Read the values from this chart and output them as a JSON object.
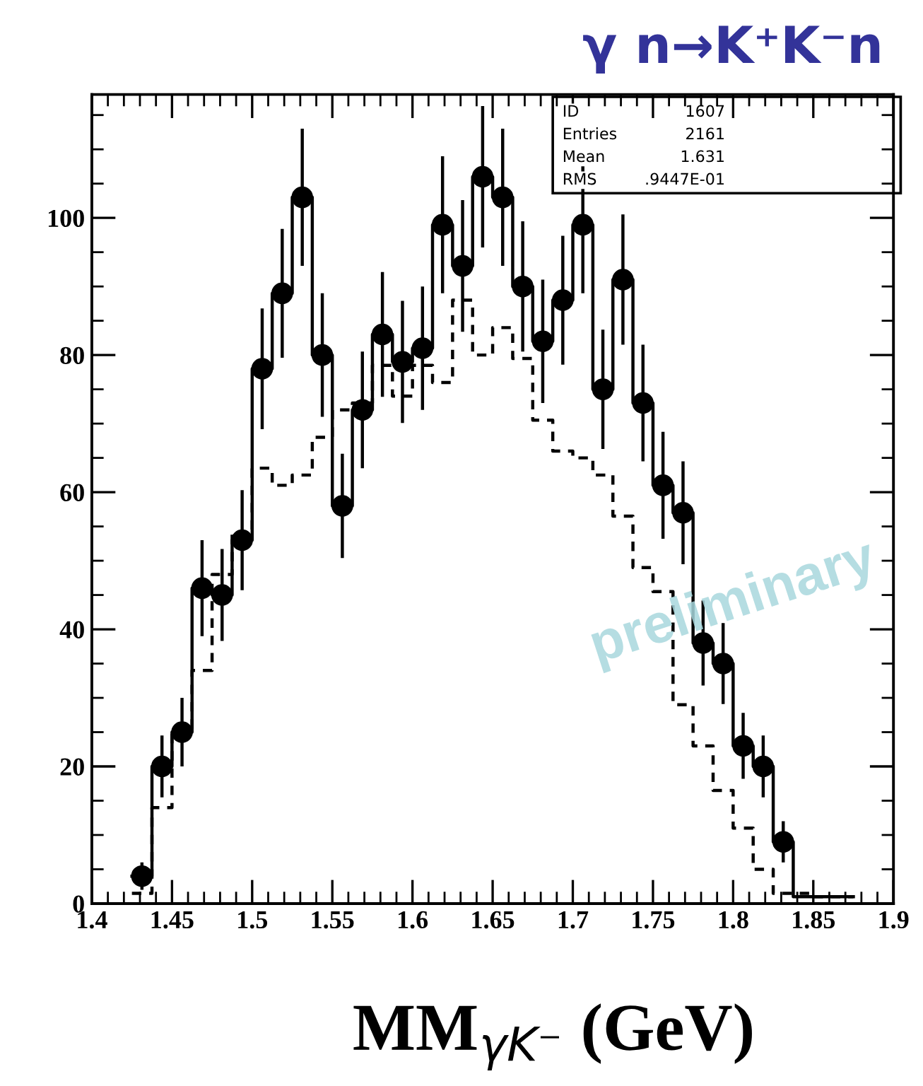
{
  "chart_data": {
    "type": "step",
    "title": "γ n→K⁺K⁻n",
    "xlabel": "MM$_{γK⁻}$ (GeV)",
    "series": [
      {
        "color": "#000000",
        "line_style": "solid",
        "x": [
          1.425,
          1.4375,
          1.45,
          1.4625,
          1.475,
          1.4875,
          1.5,
          1.5125,
          1.525,
          1.5375,
          1.55,
          1.5625,
          1.575,
          1.5875,
          1.6,
          1.6125,
          1.625,
          1.6375,
          1.65,
          1.6625,
          1.675,
          1.6875,
          1.7,
          1.7125,
          1.725,
          1.7375,
          1.75,
          1.7625,
          1.775,
          1.7875,
          1.8,
          1.8125,
          1.825,
          1.8375,
          1.85,
          1.8625,
          1.875
        ],
        "values": [
          4,
          20,
          25,
          46,
          45,
          53,
          78,
          89,
          103,
          80,
          58,
          72,
          83,
          79,
          81,
          99,
          93,
          106,
          103,
          90,
          82,
          88,
          99,
          75,
          91,
          73,
          61,
          57,
          38,
          35,
          23,
          20,
          9,
          1,
          1,
          1,
          1
        ]
      },
      {
        "color": "#000000",
        "line_style": "dashed",
        "x": [
          1.425,
          1.4375,
          1.45,
          1.4625,
          1.475,
          1.4875,
          1.5,
          1.5125,
          1.525,
          1.5375,
          1.55,
          1.5625,
          1.575,
          1.5875,
          1.6,
          1.6125,
          1.625,
          1.6375,
          1.65,
          1.6625,
          1.675,
          1.6875,
          1.7,
          1.7125,
          1.725,
          1.7375,
          1.75,
          1.7625,
          1.775,
          1.7875,
          1.8,
          1.8125,
          1.825,
          1.8375,
          1.85,
          1.8625,
          1.875
        ],
        "values": [
          1.5,
          14,
          25,
          34,
          48,
          54,
          63.5,
          61,
          62.5,
          68,
          72,
          73,
          78.5,
          74,
          78.5,
          76,
          88,
          80,
          84,
          79.5,
          70.5,
          66,
          65,
          62.5,
          56.5,
          49,
          45.5,
          29,
          23,
          16.5,
          11,
          5,
          1.5,
          1.5,
          1,
          1,
          1
        ]
      },
      {
        "type": "scatter",
        "color": "#000000",
        "marker": "circle",
        "x": [
          1.43125,
          1.44375,
          1.45625,
          1.46875,
          1.48125,
          1.49375,
          1.50625,
          1.51875,
          1.53125,
          1.54375,
          1.55625,
          1.56875,
          1.58125,
          1.59375,
          1.60625,
          1.61875,
          1.63125,
          1.64375,
          1.65625,
          1.66875,
          1.68125,
          1.69375,
          1.70625,
          1.71875,
          1.73125,
          1.74375,
          1.75625,
          1.76875,
          1.78125,
          1.79375,
          1.80625,
          1.81875,
          1.83125
        ],
        "values": [
          4,
          20,
          25,
          46,
          45,
          53,
          78,
          89,
          103,
          80,
          58,
          72,
          83,
          79,
          81,
          99,
          93,
          106,
          103,
          90,
          82,
          88,
          99,
          75,
          91,
          73,
          61,
          57,
          38,
          35,
          23,
          20,
          9
        ],
        "errors": [
          2,
          4.5,
          5,
          7,
          6.7,
          7.3,
          8.8,
          9.4,
          10,
          9,
          7.6,
          8.5,
          9.1,
          8.9,
          9,
          10,
          9.6,
          10.3,
          10,
          9.5,
          9,
          9.4,
          10,
          8.7,
          9.5,
          8.5,
          7.8,
          7.5,
          6.2,
          5.9,
          4.8,
          4.5,
          3
        ]
      }
    ],
    "xlim": [
      1.4,
      1.9
    ],
    "xticks": [
      1.4,
      1.45,
      1.5,
      1.55,
      1.6,
      1.65,
      1.7,
      1.75,
      1.8,
      1.85,
      1.9
    ],
    "ylim": [
      0,
      118
    ],
    "yticks": [
      0,
      20,
      40,
      60,
      80,
      100
    ],
    "annotations": [
      "ID",
      "1607",
      "Entries",
      "2161",
      "Mean",
      "1.631",
      "RMS",
      ".9447E-01",
      "preliminary"
    ]
  }
}
